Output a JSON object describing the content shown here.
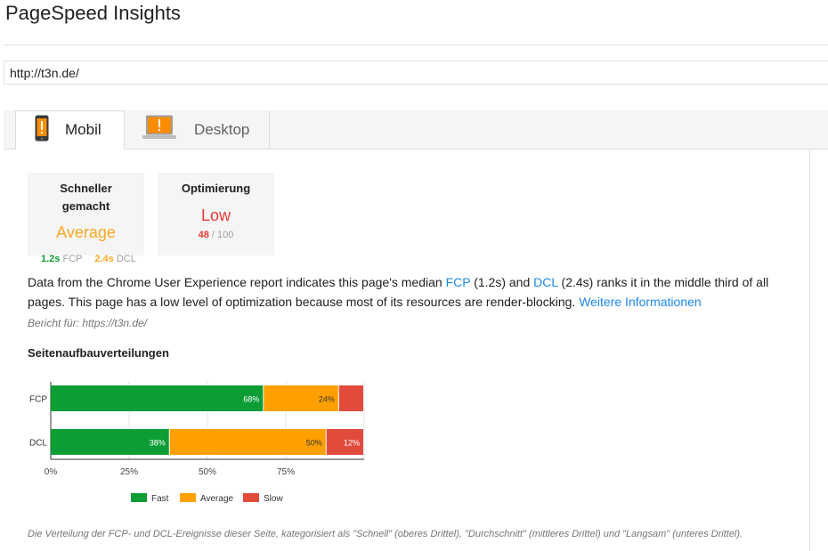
{
  "app": {
    "title": "PageSpeed Insights"
  },
  "url_input": {
    "value": "http://t3n.de/"
  },
  "tabs": [
    {
      "label": "Mobil",
      "icon": "phone-warning-icon",
      "active": true
    },
    {
      "label": "Desktop",
      "icon": "laptop-warning-icon",
      "active": false
    }
  ],
  "cards": {
    "speed": {
      "title_line1": "Schneller",
      "title_line2": "gemacht",
      "value": "Average"
    },
    "optimization": {
      "title": "Optimierung",
      "value": "Low",
      "score": "48",
      "score_max": "/ 100"
    }
  },
  "metrics": {
    "fcp_value": "1.2s",
    "fcp_label": "FCP",
    "dcl_value": "2.4s",
    "dcl_label": "DCL"
  },
  "description": {
    "part1": "Data from the Chrome User Experience report indicates this page's median ",
    "fcp_link": "FCP",
    "part2": " (1.2s) and ",
    "dcl_link": "DCL",
    "part3": " (2.4s) ranks it in the middle third of all pages. This page has a low level of optimization because most of its resources are render-blocking. ",
    "more_link": "Weitere Informationen"
  },
  "report_for": "Bericht für: https://t3n.de/",
  "section_title": "Seitenaufbauverteilungen",
  "colors": {
    "fast": "#0c9d35",
    "average": "#ffa000",
    "slow": "#e04b3c",
    "link": "#1e88e5"
  },
  "chart_data": {
    "type": "bar",
    "orientation": "horizontal",
    "stacked": true,
    "categories": [
      "FCP",
      "DCL"
    ],
    "series": [
      {
        "name": "Fast",
        "values": [
          68,
          38
        ],
        "labels": [
          "68%",
          "38%"
        ],
        "color": "#0c9d35"
      },
      {
        "name": "Average",
        "values": [
          24,
          50
        ],
        "labels": [
          "24%",
          "50%"
        ],
        "color": "#ffa000"
      },
      {
        "name": "Slow",
        "values": [
          8,
          12
        ],
        "labels": [
          "",
          "12%"
        ],
        "color": "#e04b3c"
      }
    ],
    "xlim": [
      0,
      100
    ],
    "xticks": [
      "0%",
      "25%",
      "50%",
      "75%"
    ],
    "legend_position": "bottom",
    "grid": true
  },
  "footer_note": "Die Verteilung der FCP- und DCL-Ereignisse dieser Seite, kategorisiert als \"Schnell\" (oberes Drittel), \"Durchschnitt\" (mittleres Drittel) und \"Langsam\" (unteres Drittel)."
}
